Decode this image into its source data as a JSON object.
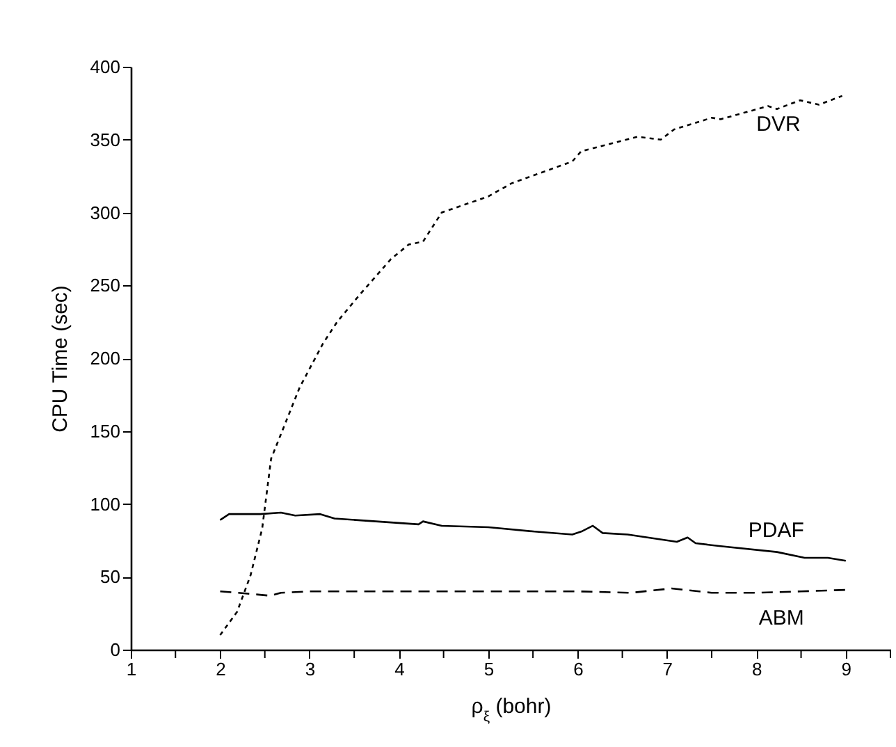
{
  "chart_data": {
    "type": "line",
    "xlabel": "ρ$_{ξ}$ (bohr)",
    "ylabel": "CPU Time (sec)",
    "xlim": [
      1,
      9.5
    ],
    "ylim": [
      0,
      400
    ],
    "xticks": [
      1,
      {
        "value": 1.5,
        "label": null
      },
      2,
      {
        "value": 2.5,
        "label": null
      },
      3,
      {
        "value": 3.5,
        "label": null
      },
      4,
      {
        "value": 4.5,
        "label": null
      },
      5,
      {
        "value": 5.5,
        "label": null
      },
      6,
      {
        "value": 6.5,
        "label": null
      },
      7,
      {
        "value": 7.5,
        "label": null
      },
      8,
      {
        "value": 8.5,
        "label": null
      },
      9,
      {
        "value": 9.5,
        "label": null
      }
    ],
    "yticks": [
      0,
      50,
      100,
      150,
      200,
      250,
      300,
      350,
      400
    ],
    "grid": false,
    "marker": "none",
    "series": [
      {
        "name": "DVR",
        "color": "#000000",
        "line_style": "dotted",
        "x": [
          2.0,
          2.19,
          2.34,
          2.47,
          2.57,
          2.89,
          3.15,
          3.31,
          3.54,
          3.91,
          4.11,
          4.27,
          4.48,
          5.0,
          5.26,
          5.94,
          6.04,
          6.67,
          6.93,
          7.08,
          7.5,
          7.6,
          8.13,
          8.23,
          8.49,
          8.7,
          8.96
        ],
        "values": [
          10,
          26,
          51,
          83,
          131,
          180,
          210,
          225,
          242,
          268,
          278,
          280,
          300,
          311,
          320,
          335,
          342,
          352,
          350,
          357,
          365,
          364,
          373,
          371,
          377,
          374,
          380
        ]
      },
      {
        "name": "PDAF",
        "color": "#000000",
        "line_style": "solid",
        "x": [
          2.0,
          2.1,
          2.45,
          2.68,
          2.84,
          3.12,
          3.28,
          4.22,
          4.27,
          4.48,
          5.0,
          5.52,
          5.94,
          6.04,
          6.17,
          6.28,
          6.56,
          7.11,
          7.23,
          7.32,
          7.6,
          8.23,
          8.54,
          8.8,
          9.0
        ],
        "values": [
          89,
          93,
          93,
          94,
          92,
          93,
          90,
          86,
          88,
          85,
          84,
          81,
          79,
          81,
          85,
          80,
          79,
          74,
          77,
          73,
          71,
          67,
          63,
          63,
          61
        ]
      },
      {
        "name": "ABM",
        "color": "#000000",
        "line_style": "dashed",
        "x": [
          2.0,
          2.2,
          2.56,
          2.68,
          3.0,
          4.0,
          5.0,
          6.0,
          6.6,
          7.05,
          7.5,
          8.0,
          8.5,
          9.0
        ],
        "values": [
          40,
          39,
          37,
          39,
          40,
          40,
          40,
          40,
          39,
          42,
          39,
          39,
          40,
          41
        ]
      }
    ]
  }
}
